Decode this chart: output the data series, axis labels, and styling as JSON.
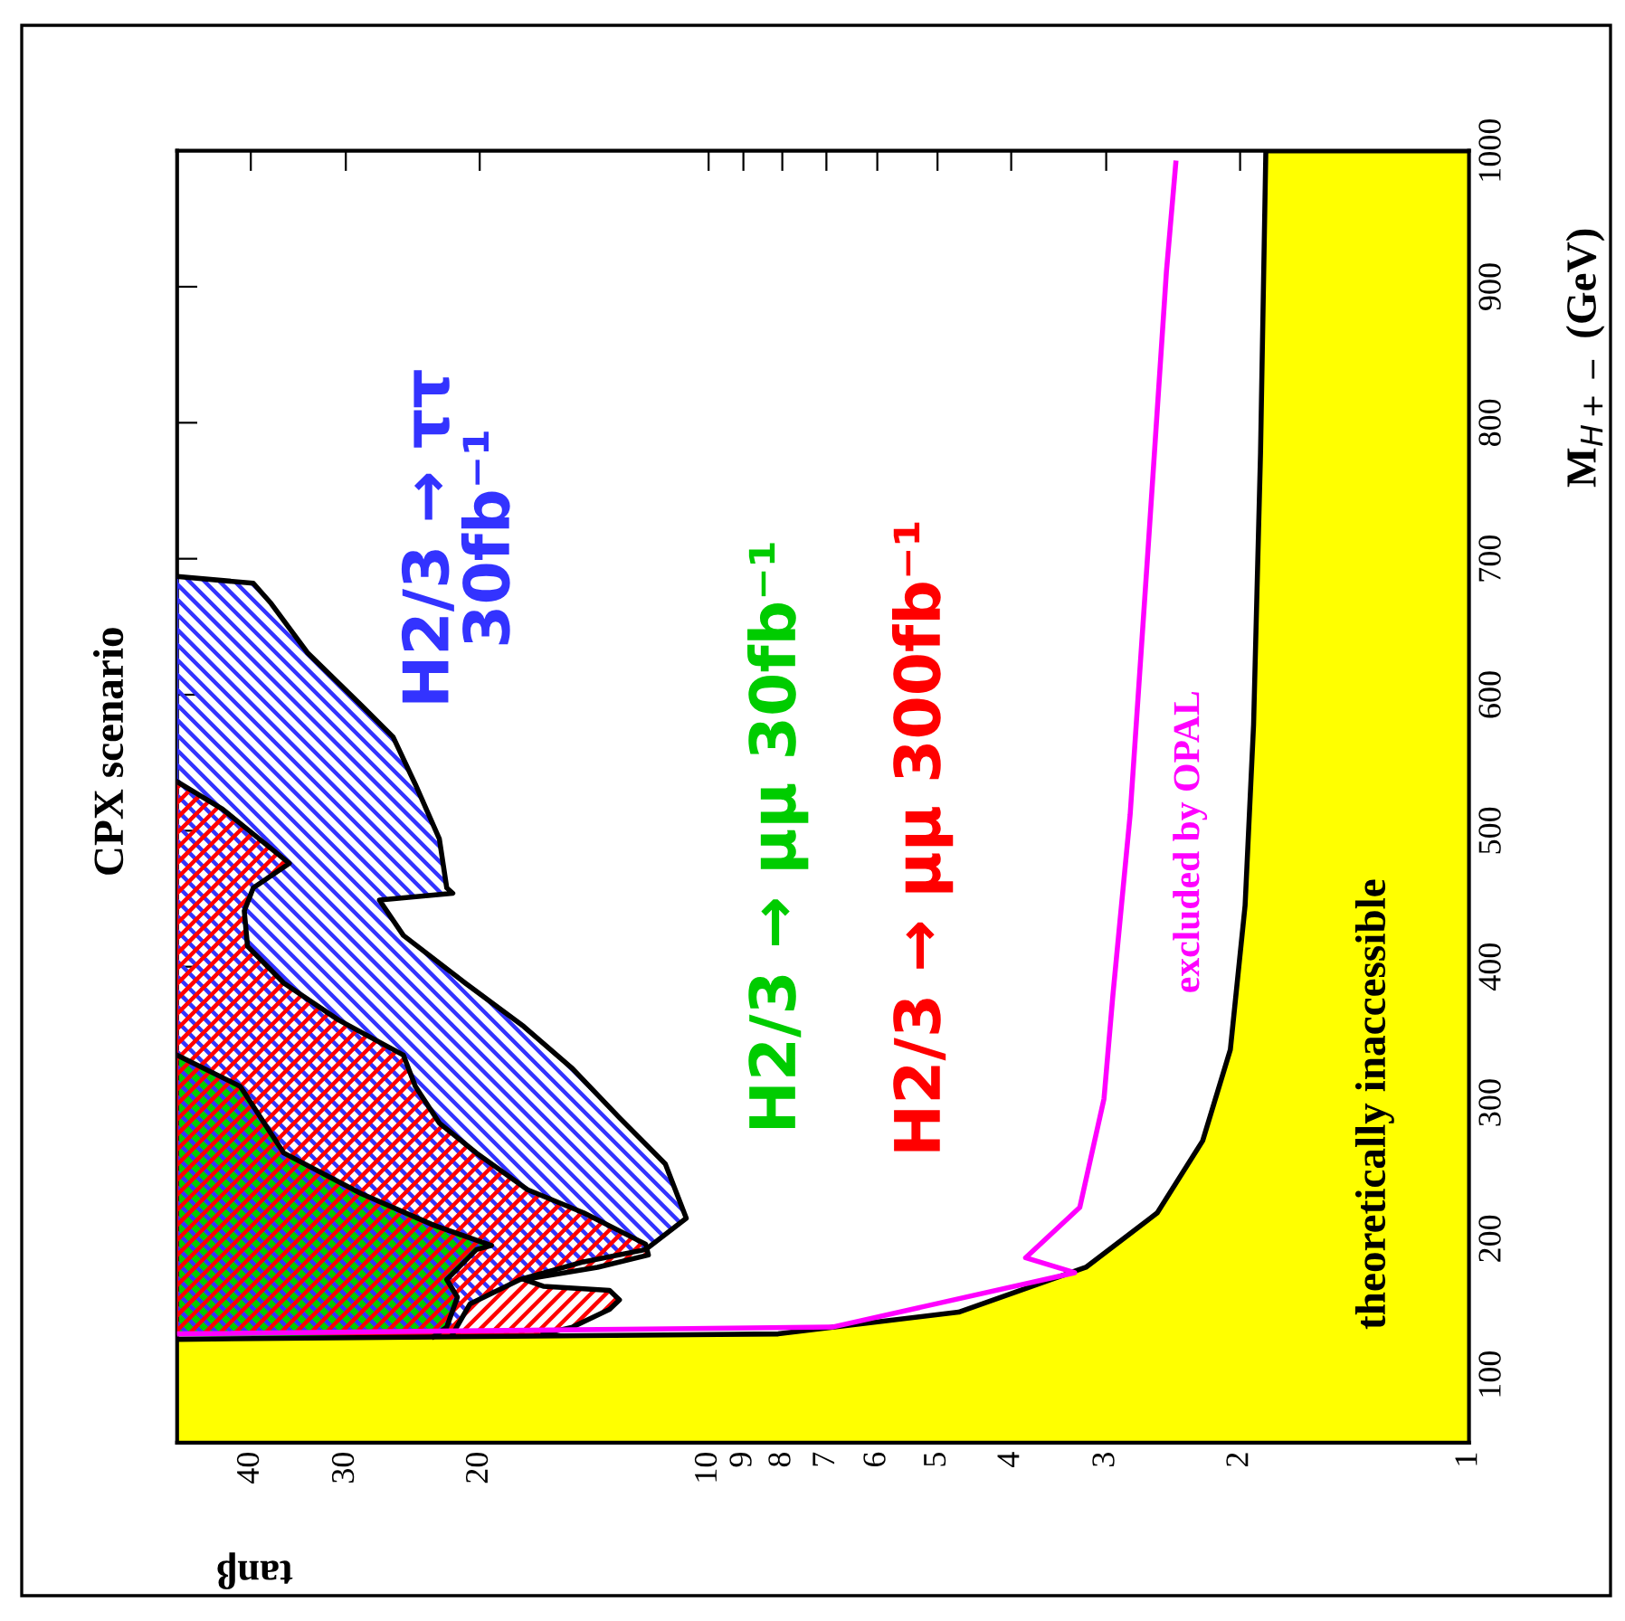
{
  "chart_data": {
    "type": "area",
    "title": "CPX scenario",
    "xlabel": "tanβ",
    "ylabel": "M$_{H+−}$ (GeV)",
    "log": "x",
    "xlim": [
      50,
      1
    ],
    "xticks": [
      1,
      2,
      3,
      4,
      5,
      6,
      7,
      8,
      9,
      10,
      20,
      30,
      40
    ],
    "ylim": [
      50,
      1000
    ],
    "yticks": [
      100,
      200,
      300,
      400,
      500,
      600,
      700,
      800,
      900,
      1000
    ],
    "legend": false,
    "annotations": [
      "theoretically inaccessible"
    ],
    "series": [
      {
        "color": "#ffff00",
        "x": [
          50,
          8.1,
          4.69,
          3.19,
          2.57,
          2.24,
          2.06,
          1.97,
          1.92,
          1.88,
          1.85,
          1
        ],
        "values": [
          126,
          130,
          146,
          179,
          219,
          272,
          339,
          445,
          578,
          778,
          1000,
          1000
        ]
      },
      {
        "name": "H2/3 → ττ\n30fb⁻¹",
        "color": "#3333ff",
        "x": [
          50,
          39.7,
          37.6,
          33.7,
          28.6,
          26.0,
          24.3,
          22.6,
          22.1,
          21.7,
          27.1,
          25.2,
          20.9,
          17.5,
          15.1,
          13.1,
          11.4,
          10.7,
          12.1,
          14.6,
          17.7,
          20.6,
          21.7
        ],
        "values": [
          687,
          682,
          667,
          631,
          592,
          569,
          534,
          494,
          458,
          454,
          449,
          423,
          388,
          356,
          325,
          289,
          255,
          215,
          192,
          183,
          170,
          152,
          130
        ]
      },
      {
        "name": "H2/3 → μμ 300fb⁻¹",
        "color": "#ff0000",
        "x": [
          50,
          43.6,
          35.6,
          39.7,
          40.8,
          40.4,
          36.2,
          30.7,
          25.2,
          24.3,
          22.6,
          20.2,
          17.3,
          14.6,
          12.1,
          12.0,
          14.0,
          17.5,
          16.5,
          13.5,
          13.1,
          13.5,
          15.1,
          16.5
        ],
        "values": [
          536,
          516,
          476,
          458,
          441,
          415,
          388,
          361,
          335,
          312,
          285,
          263,
          236,
          219,
          196,
          188,
          179,
          170,
          165,
          162,
          155,
          148,
          135,
          130
        ]
      },
      {
        "name": "H2/3 → μμ 30fb⁻¹",
        "color": "#00cc00",
        "x": [
          50,
          41.3,
          36.2,
          28.6,
          23.0,
          19.3,
          20.2,
          22.1,
          21.4,
          22.1,
          23.0
        ],
        "values": [
          335,
          312,
          263,
          233,
          210,
          195,
          192,
          170,
          157,
          135,
          128
        ]
      },
      {
        "name": "excluded by OPAL",
        "type": "line",
        "color": "#ff00ff",
        "x": [
          50,
          6.88,
          3.3,
          3.83,
          3.25,
          3.02,
          2.94,
          2.79,
          2.64,
          2.5,
          2.43
        ],
        "values": [
          130,
          135,
          175,
          186,
          223,
          303,
          379,
          512,
          711,
          911,
          991
        ]
      }
    ]
  }
}
